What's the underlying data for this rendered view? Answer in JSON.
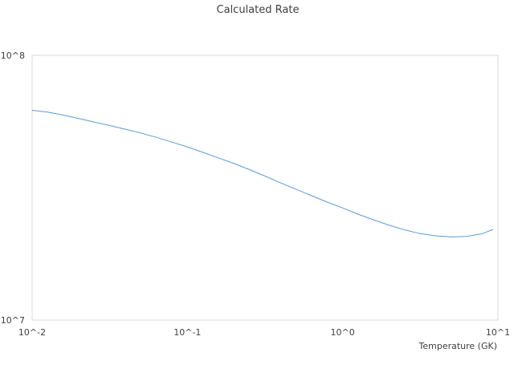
{
  "chart_data": {
    "type": "line",
    "title": "Calculated Rate",
    "xlabel": "Temperature (GK)",
    "ylabel": "",
    "x_scale": "log",
    "y_scale": "log",
    "xlim": [
      0.01,
      10
    ],
    "ylim": [
      10000000,
      100000000
    ],
    "x_tick_labels": [
      "10^-2",
      "10^-1",
      "10^0",
      "10^1"
    ],
    "y_tick_labels": [
      "10^7",
      "10^8"
    ],
    "grid": false,
    "line_color": "#5b9bd5",
    "series": [
      {
        "x": [
          0.01,
          0.0126,
          0.0158,
          0.02,
          0.025,
          0.0316,
          0.0398,
          0.05,
          0.063,
          0.0794,
          0.1,
          0.126,
          0.158,
          0.2,
          0.251,
          0.316,
          0.398,
          0.501,
          0.631,
          0.794,
          1.0,
          1.26,
          1.58,
          2.0,
          2.51,
          3.16,
          3.98,
          5.01,
          6.31,
          7.94,
          9.3
        ],
        "y": [
          62000000,
          61000000,
          59500000,
          57700000,
          56000000,
          54300000,
          52600000,
          50900000,
          49000000,
          47000000,
          45100000,
          43000000,
          41000000,
          39000000,
          37000000,
          35000000,
          33000000,
          31200000,
          29500000,
          27900000,
          26500000,
          25100000,
          23900000,
          22800000,
          21900000,
          21200000,
          20800000,
          20600000,
          20700000,
          21200000,
          22000000
        ]
      }
    ]
  }
}
